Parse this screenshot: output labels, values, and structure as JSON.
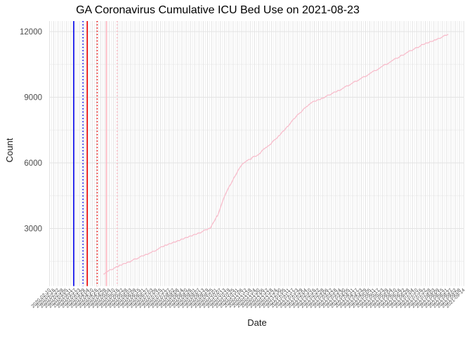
{
  "chart_data": {
    "type": "line",
    "title": "GA Coronavirus Cumulative ICU Bed Use on 2021-08-23",
    "xlabel": "Date",
    "ylabel": "Count",
    "grid": true,
    "legend": "none",
    "colors": {
      "background": "#FFFFFF",
      "grid_major": "#E3E3E3",
      "grid_minor": "#F0F0F0",
      "axis_text": "#4D4D4D",
      "title_text": "#000000",
      "series_pink": "#F8BCCB",
      "event_blue": "#0000EE",
      "event_red": "#EE0000",
      "event_pink": "#FFB6C1"
    },
    "y_axis": {
      "ticks": [
        3000,
        6000,
        9000,
        12000
      ],
      "minor_ticks": [
        1500,
        4500,
        7500,
        10500
      ],
      "range": [
        370,
        12480
      ]
    },
    "x_axis": {
      "start": "2020-02-10",
      "end": "2021-09-14",
      "tick_labels": [
        "2020-02-10",
        "2020-02-16",
        "2020-02-22",
        "2020-02-28",
        "2020-03-05",
        "2020-03-11",
        "2020-03-17",
        "2020-03-23",
        "2020-03-29",
        "2020-04-04",
        "2020-04-10",
        "2020-04-16",
        "2020-04-22",
        "2020-04-28",
        "2020-05-04",
        "2020-05-10",
        "2020-05-16",
        "2020-05-22",
        "2020-05-28",
        "2020-06-03",
        "2020-06-09",
        "2020-06-15",
        "2020-06-21",
        "2020-06-27",
        "2020-07-03",
        "2020-07-09",
        "2020-07-15",
        "2020-07-21",
        "2020-07-27",
        "2020-08-02",
        "2020-08-08",
        "2020-08-14",
        "2020-08-20",
        "2020-08-26",
        "2020-09-01",
        "2020-09-07",
        "2020-09-13",
        "2020-09-19",
        "2020-09-25",
        "2020-10-01",
        "2020-10-07",
        "2020-10-13",
        "2020-10-19",
        "2020-10-25",
        "2020-10-31",
        "2020-11-06",
        "2020-11-12",
        "2020-11-18",
        "2020-11-24",
        "2020-11-30",
        "2020-12-06",
        "2020-12-12",
        "2020-12-18",
        "2020-12-24",
        "2020-12-30",
        "2021-01-05",
        "2021-01-11",
        "2021-01-17",
        "2021-01-23",
        "2021-01-29",
        "2021-02-04",
        "2021-02-10",
        "2021-02-16",
        "2021-02-22",
        "2021-02-28",
        "2021-03-06",
        "2021-03-12",
        "2021-03-18",
        "2021-03-24",
        "2021-03-30",
        "2021-04-05",
        "2021-04-11",
        "2021-04-17",
        "2021-04-23",
        "2021-04-29",
        "2021-05-05",
        "2021-05-11",
        "2021-05-17",
        "2021-05-23",
        "2021-05-29",
        "2021-06-04",
        "2021-06-10",
        "2021-06-16",
        "2021-06-22",
        "2021-06-28",
        "2021-07-04",
        "2021-07-10",
        "2021-07-16",
        "2021-07-22",
        "2021-07-28",
        "2021-08-03",
        "2021-08-09",
        "2021-08-15",
        "2021-08-21",
        "2021-08-27",
        "2021-09-02",
        "2021-09-08",
        "2021-09-14"
      ]
    },
    "event_lines": [
      {
        "date": "2020-03-15",
        "color": "#0000EE",
        "style": "solid"
      },
      {
        "date": "2020-03-28",
        "color": "#0000EE",
        "style": "dotted"
      },
      {
        "date": "2020-04-03",
        "color": "#EE0000",
        "style": "solid"
      },
      {
        "date": "2020-04-17",
        "color": "#EE0000",
        "style": "dotted"
      },
      {
        "date": "2020-04-30",
        "color": "#FFB6C1",
        "style": "solid"
      },
      {
        "date": "2020-05-15",
        "color": "#FFB6C1",
        "style": "dotted"
      }
    ],
    "series": [
      {
        "name": "Cumulative ICU Bed Use",
        "color": "#F8BCCB",
        "points": [
          [
            "2020-04-26",
            900
          ],
          [
            "2020-05-02",
            1060
          ],
          [
            "2020-05-18",
            1310
          ],
          [
            "2020-06-09",
            1595
          ],
          [
            "2020-07-01",
            1900
          ],
          [
            "2020-07-21",
            2215
          ],
          [
            "2020-08-13",
            2490
          ],
          [
            "2020-09-03",
            2750
          ],
          [
            "2020-09-23",
            3015
          ],
          [
            "2020-10-03",
            3600
          ],
          [
            "2020-10-13",
            4500
          ],
          [
            "2020-10-26",
            5300
          ],
          [
            "2020-11-07",
            5970
          ],
          [
            "2020-11-20",
            6200
          ],
          [
            "2020-12-02",
            6460
          ],
          [
            "2020-12-27",
            7180
          ],
          [
            "2021-01-20",
            8060
          ],
          [
            "2021-02-09",
            8700
          ],
          [
            "2021-03-01",
            8990
          ],
          [
            "2021-03-21",
            9290
          ],
          [
            "2021-04-20",
            9800
          ],
          [
            "2021-05-20",
            10360
          ],
          [
            "2021-06-18",
            10900
          ],
          [
            "2021-07-17",
            11380
          ],
          [
            "2021-08-06",
            11640
          ],
          [
            "2021-08-23",
            11880
          ]
        ]
      }
    ]
  }
}
